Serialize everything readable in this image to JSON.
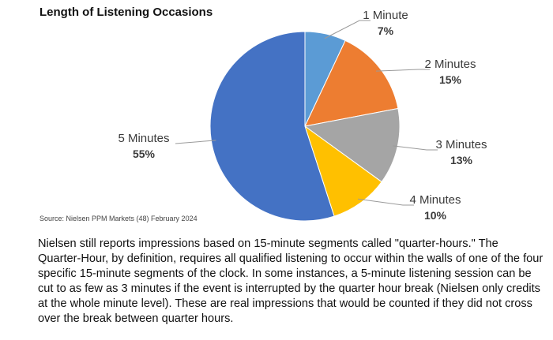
{
  "chart_data": {
    "type": "pie",
    "title": "Length of Listening Occasions",
    "categories": [
      "1 Minute",
      "2 Minutes",
      "3 Minutes",
      "4 Minutes",
      "5 Minutes"
    ],
    "values": [
      7,
      15,
      13,
      10,
      55
    ],
    "value_labels": [
      "7%",
      "15%",
      "13%",
      "10%",
      "55%"
    ],
    "colors": [
      "#5b9bd5",
      "#ed7d31",
      "#a5a5a5",
      "#ffc000",
      "#4472c4"
    ],
    "start": "12 o'clock",
    "direction": "clockwise",
    "legend": "none"
  },
  "source_note": "Source:  Nielsen PPM Markets (48) February 2024",
  "body_text": "Nielsen still reports impressions based on 15-minute segments called \"quarter-hours.\" The Quarter-Hour, by definition, requires all qualified listening to occur within the walls of one of the four specific 15-minute segments of the clock. In some instances, a 5-minute listening session can be cut to as few as 3 minutes if the event is interrupted by the quarter hour break (Nielsen only credits at the whole minute level). These are real impressions that would be counted if they did not cross over the break between quarter hours."
}
